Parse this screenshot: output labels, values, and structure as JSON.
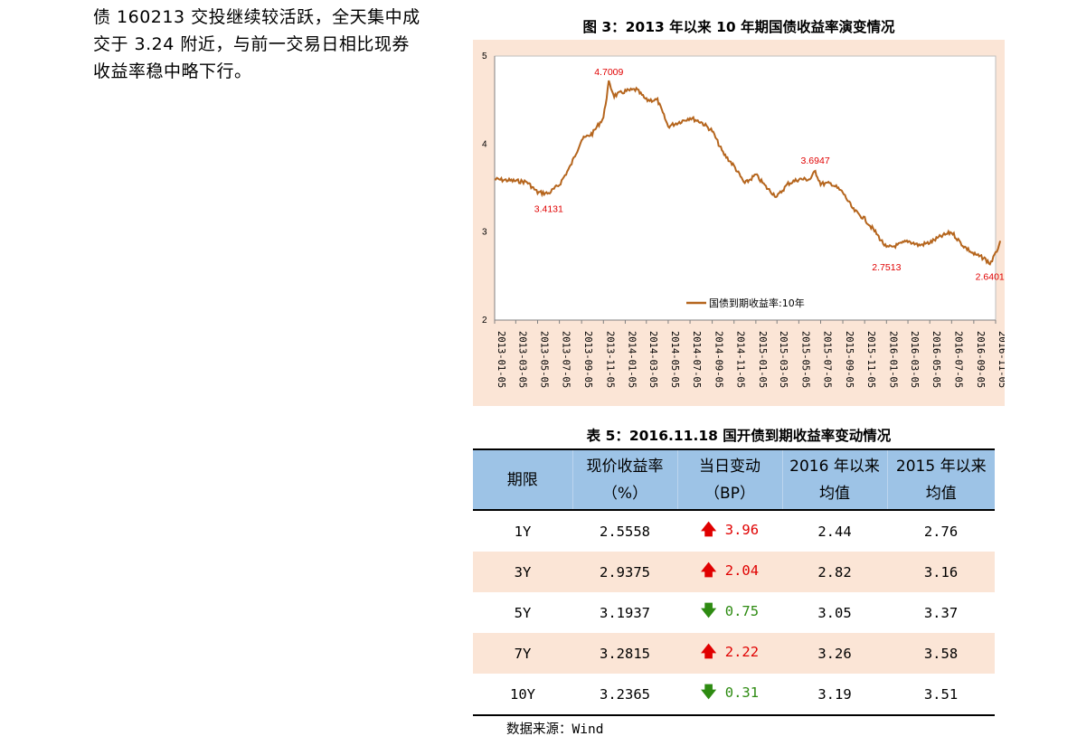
{
  "left_text": {
    "line1": "债 160213 交投继续较活跃，全天集中成",
    "line2": "交于 3.24 附近，与前一交易日相比现券",
    "line3": "收益率稳中略下行。"
  },
  "figure": {
    "title": "图 3：2013 年以来 10 年期国债收益率演变情况"
  },
  "chart_data": {
    "type": "line",
    "title": "图 3：2013 年以来 10 年期国债收益率演变情况",
    "xlabel": "",
    "ylabel": "",
    "ylim": [
      2,
      5
    ],
    "y_ticks": [
      "2",
      "3",
      "4",
      "5"
    ],
    "x_ticks": [
      "2013-01-05",
      "2013-03-05",
      "2013-05-05",
      "2013-07-05",
      "2013-09-05",
      "2013-11-05",
      "2014-01-05",
      "2014-03-05",
      "2014-05-05",
      "2014-07-05",
      "2014-09-05",
      "2014-11-05",
      "2015-01-05",
      "2015-03-05",
      "2015-05-05",
      "2015-07-05",
      "2015-09-05",
      "2015-11-05",
      "2016-01-05",
      "2016-03-05",
      "2016-05-05",
      "2016-07-05",
      "2016-09-05",
      "2016-11-05"
    ],
    "legend": "国债到期收益率:10年",
    "legend_position": "bottom-center",
    "grid": false,
    "line_color": "#b5651d",
    "series": [
      {
        "name": "国债到期收益率:10年",
        "x": [
          "2013-01-05",
          "2013-02-05",
          "2013-03-05",
          "2013-04-05",
          "2013-05-05",
          "2013-06-05",
          "2013-07-05",
          "2013-08-05",
          "2013-09-05",
          "2013-10-05",
          "2013-11-05",
          "2013-11-20",
          "2013-12-05",
          "2014-01-05",
          "2014-02-05",
          "2014-03-05",
          "2014-04-05",
          "2014-05-05",
          "2014-06-05",
          "2014-07-05",
          "2014-08-05",
          "2014-09-05",
          "2014-10-05",
          "2014-11-05",
          "2014-12-05",
          "2015-01-05",
          "2015-02-05",
          "2015-03-05",
          "2015-04-05",
          "2015-05-05",
          "2015-06-05",
          "2015-06-20",
          "2015-07-05",
          "2015-08-05",
          "2015-09-05",
          "2015-10-05",
          "2015-11-05",
          "2015-12-05",
          "2016-01-05",
          "2016-02-05",
          "2016-03-05",
          "2016-04-05",
          "2016-05-05",
          "2016-06-05",
          "2016-07-05",
          "2016-08-05",
          "2016-09-05",
          "2016-10-05",
          "2016-10-20",
          "2016-11-05",
          "2016-11-18"
        ],
        "values": [
          3.6,
          3.59,
          3.58,
          3.57,
          3.45,
          3.44,
          3.54,
          3.75,
          4.05,
          4.12,
          4.3,
          4.7,
          4.55,
          4.6,
          4.62,
          4.5,
          4.5,
          4.2,
          4.25,
          4.3,
          4.25,
          4.15,
          3.9,
          3.75,
          3.55,
          3.65,
          3.5,
          3.4,
          3.55,
          3.6,
          3.6,
          3.69,
          3.55,
          3.55,
          3.45,
          3.25,
          3.15,
          3.0,
          2.82,
          2.85,
          2.9,
          2.85,
          2.88,
          2.95,
          3.0,
          2.85,
          2.75,
          2.7,
          2.64,
          2.75,
          2.9
        ]
      }
    ],
    "annotations": [
      {
        "x": "2013-06-05",
        "y": 3.4131,
        "text": "3.4131"
      },
      {
        "x": "2013-11-20",
        "y": 4.7009,
        "text": "4.7009"
      },
      {
        "x": "2015-06-20",
        "y": 3.6947,
        "text": "3.6947"
      },
      {
        "x": "2016-01-05",
        "y": 2.7513,
        "text": "2.7513"
      },
      {
        "x": "2016-10-20",
        "y": 2.6401,
        "text": "2.6401"
      }
    ]
  },
  "table": {
    "title": "表 5：2016.11.18 国开债到期收益率变动情况",
    "headers": {
      "term": "期限",
      "yield": "现价收益率",
      "yield_unit": "（%）",
      "change": "当日变动",
      "change_unit": "（BP）",
      "avg2016": "2016 年以来",
      "avg2016_b": "均值",
      "avg2015": "2015 年以来",
      "avg2015_b": "均值"
    },
    "rows": [
      {
        "term": "1Y",
        "yield": "2.5558",
        "dir": "up",
        "arrow_icon": "arrow-up-icon",
        "arrow": "🡅",
        "change": "3.96",
        "avg2016": "2.44",
        "avg2015": "2.76"
      },
      {
        "term": "3Y",
        "yield": "2.9375",
        "dir": "up",
        "arrow_icon": "arrow-up-icon",
        "arrow": "🡅",
        "change": "2.04",
        "avg2016": "2.82",
        "avg2015": "3.16"
      },
      {
        "term": "5Y",
        "yield": "3.1937",
        "dir": "down",
        "arrow_icon": "arrow-down-icon",
        "arrow": "🡇",
        "change": "0.75",
        "avg2016": "3.05",
        "avg2015": "3.37"
      },
      {
        "term": "7Y",
        "yield": "3.2815",
        "dir": "up",
        "arrow_icon": "arrow-up-icon",
        "arrow": "🡅",
        "change": "2.22",
        "avg2016": "3.26",
        "avg2015": "3.58"
      },
      {
        "term": "10Y",
        "yield": "3.2365",
        "dir": "down",
        "arrow_icon": "arrow-down-icon",
        "arrow": "🡇",
        "change": "0.31",
        "avg2016": "3.19",
        "avg2015": "3.51"
      }
    ],
    "colors": {
      "up": "#e00000",
      "down": "#2e8b12",
      "header_bg": "#9dc3e6",
      "stripe_bg": "#fbe5d6"
    }
  },
  "source": "数据来源：Wind"
}
